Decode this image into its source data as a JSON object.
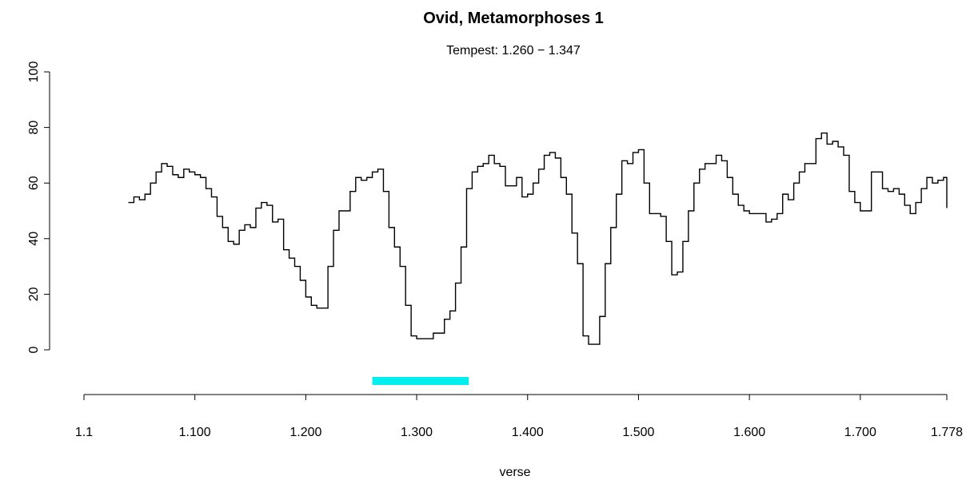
{
  "chart_data": {
    "type": "line",
    "line_style": "step",
    "title": "Ovid, Metamorphoses 1",
    "subtitle": "Tempest: 1.260 − 1.347",
    "xlabel": "verse",
    "ylabel": "",
    "ylim": [
      0,
      100
    ],
    "y_ticks": [
      "0",
      "20",
      "40",
      "60",
      "80",
      "100"
    ],
    "x_ticks": [
      {
        "value": 0,
        "label": "1.1"
      },
      {
        "value": 100,
        "label": "1.100"
      },
      {
        "value": 200,
        "label": "1.200"
      },
      {
        "value": 300,
        "label": "1.300"
      },
      {
        "value": 400,
        "label": "1.400"
      },
      {
        "value": 500,
        "label": "1.500"
      },
      {
        "value": 600,
        "label": "1.600"
      },
      {
        "value": 700,
        "label": "1.700"
      },
      {
        "value": 778,
        "label": "1.778"
      }
    ],
    "xlim": [
      0,
      778
    ],
    "highlight": {
      "start": 260,
      "end": 347,
      "color": "#00eeee"
    },
    "line_color": "#000000",
    "grid": false,
    "series": [
      {
        "x": [
          40,
          45,
          50,
          55,
          60,
          65,
          70,
          75,
          80,
          85,
          90,
          95,
          100,
          105,
          110,
          115,
          120,
          125,
          130,
          135,
          140,
          145,
          150,
          155,
          160,
          165,
          170,
          175,
          180,
          185,
          190,
          195,
          200,
          205,
          210,
          215,
          220,
          225,
          230,
          235,
          240,
          245,
          250,
          255,
          260,
          265,
          270,
          275,
          280,
          285,
          290,
          295,
          300,
          305,
          310,
          315,
          320,
          325,
          330,
          335,
          340,
          345,
          350,
          355,
          360,
          365,
          370,
          375,
          380,
          385,
          390,
          395,
          400,
          405,
          410,
          415,
          420,
          425,
          430,
          435,
          440,
          445,
          450,
          455,
          460,
          465,
          470,
          475,
          480,
          485,
          490,
          495,
          500,
          505,
          510,
          515,
          520,
          525,
          530,
          535,
          540,
          545,
          550,
          555,
          560,
          565,
          570,
          575,
          580,
          585,
          590,
          595,
          600,
          605,
          610,
          615,
          620,
          625,
          630,
          635,
          640,
          645,
          650,
          655,
          660,
          665,
          670,
          675,
          680,
          685,
          690,
          695,
          700,
          705,
          710,
          715,
          720,
          725,
          730,
          735,
          740,
          745,
          750,
          755,
          760,
          765,
          770,
          775,
          778
        ],
        "y": [
          53,
          55,
          54,
          56,
          60,
          64,
          67,
          66,
          63,
          62,
          65,
          64,
          63,
          62,
          58,
          55,
          48,
          44,
          39,
          38,
          43,
          45,
          44,
          51,
          53,
          52,
          46,
          47,
          36,
          33,
          30,
          25,
          19,
          16,
          15,
          15,
          30,
          43,
          50,
          50,
          57,
          62,
          61,
          62,
          64,
          65,
          57,
          44,
          37,
          30,
          16,
          5,
          4,
          4,
          4,
          6,
          6,
          11,
          14,
          24,
          37,
          58,
          64,
          66,
          67,
          70,
          67,
          66,
          59,
          59,
          62,
          55,
          56,
          60,
          65,
          70,
          71,
          69,
          62,
          56,
          42,
          31,
          5,
          2,
          2,
          12,
          31,
          44,
          56,
          68,
          67,
          71,
          72,
          60,
          49,
          49,
          48,
          39,
          27,
          28,
          39,
          50,
          60,
          65,
          67,
          67,
          70,
          68,
          62,
          56,
          52,
          50,
          49,
          49,
          49,
          46,
          47,
          49,
          56,
          54,
          60,
          64,
          67,
          67,
          76,
          78,
          74,
          75,
          73,
          70,
          57,
          53,
          50,
          50,
          64,
          64,
          58,
          57,
          58,
          56,
          52,
          49,
          53,
          58,
          62,
          60,
          61,
          62,
          51
        ]
      }
    ]
  }
}
